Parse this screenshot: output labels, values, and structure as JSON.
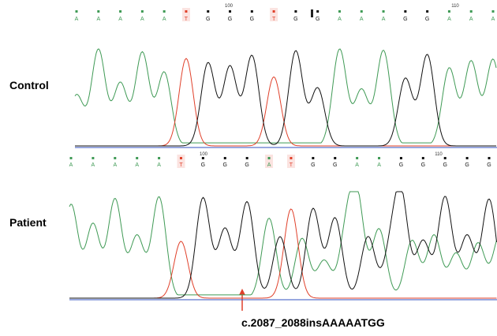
{
  "panels": [
    {
      "label": "Control",
      "bases": [
        "A",
        "A",
        "A",
        "A",
        "A",
        "T",
        "G",
        "G",
        "G",
        "T",
        "G",
        "G",
        "A",
        "A",
        "A",
        "G",
        "G",
        "A",
        "A",
        "A"
      ],
      "position_labels": [
        "100",
        "110"
      ]
    },
    {
      "label": "Patient",
      "bases": [
        "A",
        "A",
        "A",
        "A",
        "A",
        "T",
        "G",
        "G",
        "G",
        "A",
        "T",
        "G",
        "G",
        "A",
        "A",
        "G",
        "G",
        "G",
        "G",
        "G"
      ],
      "position_labels": [
        "100",
        "110"
      ]
    }
  ],
  "annotation": "c.2087_2088insAAAAATGG"
}
